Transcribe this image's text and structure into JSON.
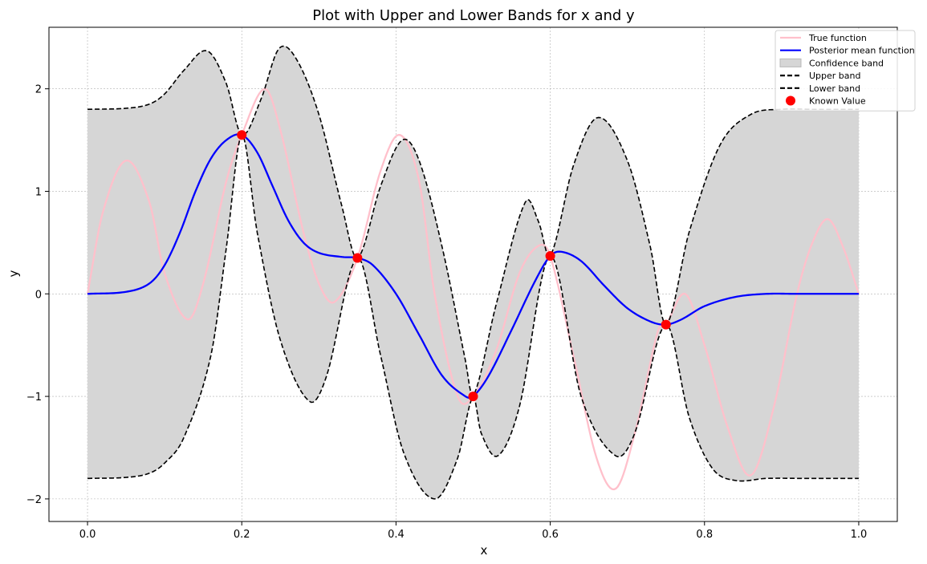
{
  "chart_data": {
    "type": "line",
    "title": "Plot with Upper and Lower Bands for x and y",
    "xlabel": "x",
    "ylabel": "y",
    "xlim": [
      -0.05,
      1.05
    ],
    "ylim": [
      -2.22,
      2.6
    ],
    "x_ticks": [
      0.0,
      0.2,
      0.4,
      0.6,
      0.8,
      1.0
    ],
    "x_tick_labels": [
      "0.0",
      "0.2",
      "0.4",
      "0.6",
      "0.8",
      "1.0"
    ],
    "y_ticks": [
      -2,
      -1,
      0,
      1,
      2
    ],
    "y_tick_labels": [
      "−2",
      "−1",
      "0",
      "1",
      "2"
    ],
    "grid": true,
    "legend_position": "top-right",
    "series": [
      {
        "name": "True function",
        "style": "solid",
        "color": "#ffc0cb",
        "x": [
          0.0,
          0.02,
          0.05,
          0.08,
          0.1,
          0.13,
          0.15,
          0.18,
          0.2,
          0.23,
          0.25,
          0.28,
          0.3,
          0.32,
          0.35,
          0.38,
          0.405,
          0.43,
          0.45,
          0.48,
          0.5,
          0.53,
          0.56,
          0.585,
          0.6,
          0.63,
          0.66,
          0.685,
          0.71,
          0.74,
          0.75,
          0.775,
          0.8,
          0.83,
          0.86,
          0.89,
          0.92,
          0.94,
          0.96,
          0.98,
          1.0
        ],
        "y": [
          0.0,
          0.8,
          1.3,
          0.9,
          0.2,
          -0.25,
          0.1,
          1.1,
          1.55,
          2.0,
          1.6,
          0.6,
          0.1,
          -0.08,
          0.35,
          1.2,
          1.55,
          1.1,
          0.0,
          -1.0,
          -1.0,
          -0.55,
          0.2,
          0.47,
          0.37,
          -0.6,
          -1.6,
          -1.9,
          -1.35,
          -0.35,
          -0.3,
          0.0,
          -0.5,
          -1.3,
          -1.77,
          -1.1,
          0.0,
          0.5,
          0.73,
          0.45,
          0.0
        ]
      },
      {
        "name": "Posterior mean function",
        "style": "solid",
        "color": "#0000ff",
        "x": [
          0.0,
          0.05,
          0.08,
          0.1,
          0.12,
          0.14,
          0.16,
          0.18,
          0.2,
          0.22,
          0.24,
          0.26,
          0.28,
          0.3,
          0.33,
          0.35,
          0.37,
          0.4,
          0.43,
          0.46,
          0.49,
          0.5,
          0.52,
          0.55,
          0.58,
          0.6,
          0.615,
          0.64,
          0.67,
          0.7,
          0.73,
          0.75,
          0.77,
          0.8,
          0.84,
          0.88,
          0.92,
          1.0
        ],
        "y": [
          0.0,
          0.02,
          0.1,
          0.28,
          0.6,
          1.0,
          1.32,
          1.5,
          1.55,
          1.38,
          1.05,
          0.72,
          0.5,
          0.4,
          0.36,
          0.35,
          0.28,
          0.0,
          -0.4,
          -0.8,
          -1.0,
          -1.0,
          -0.8,
          -0.35,
          0.12,
          0.37,
          0.41,
          0.32,
          0.08,
          -0.14,
          -0.27,
          -0.3,
          -0.25,
          -0.12,
          -0.03,
          0.0,
          0.0,
          0.0
        ]
      },
      {
        "name": "Upper band",
        "style": "dashed",
        "color": "#000000",
        "x": [
          0.0,
          0.05,
          0.08,
          0.1,
          0.125,
          0.155,
          0.18,
          0.2,
          0.225,
          0.248,
          0.27,
          0.3,
          0.33,
          0.35,
          0.38,
          0.408,
          0.43,
          0.46,
          0.49,
          0.5,
          0.53,
          0.568,
          0.585,
          0.6,
          0.63,
          0.662,
          0.7,
          0.73,
          0.75,
          0.78,
          0.82,
          0.86,
          0.9,
          0.94,
          1.0
        ],
        "y": [
          1.8,
          1.81,
          1.85,
          1.95,
          2.18,
          2.37,
          2.05,
          1.55,
          1.9,
          2.39,
          2.3,
          1.75,
          0.85,
          0.35,
          1.05,
          1.5,
          1.3,
          0.45,
          -0.65,
          -1.0,
          -0.1,
          0.9,
          0.7,
          0.37,
          1.25,
          1.72,
          1.3,
          0.45,
          -0.3,
          0.6,
          1.45,
          1.75,
          1.8,
          1.8,
          1.8
        ]
      },
      {
        "name": "Lower band",
        "style": "dashed",
        "color": "#000000",
        "x": [
          0.0,
          0.05,
          0.08,
          0.1,
          0.125,
          0.16,
          0.18,
          0.2,
          0.22,
          0.25,
          0.288,
          0.31,
          0.35,
          0.38,
          0.41,
          0.45,
          0.48,
          0.5,
          0.51,
          0.532,
          0.56,
          0.6,
          0.64,
          0.685,
          0.71,
          0.75,
          0.78,
          0.81,
          0.84,
          0.88,
          0.93,
          1.0
        ],
        "y": [
          -1.8,
          -1.79,
          -1.75,
          -1.65,
          -1.4,
          -0.6,
          0.45,
          1.55,
          0.6,
          -0.45,
          -1.05,
          -0.8,
          0.35,
          -0.6,
          -1.55,
          -2.0,
          -1.6,
          -1.0,
          -1.35,
          -1.58,
          -1.1,
          0.37,
          -1.0,
          -1.58,
          -1.35,
          -0.3,
          -1.2,
          -1.7,
          -1.82,
          -1.8,
          -1.8,
          -1.8
        ]
      }
    ],
    "band": {
      "name": "Confidence band",
      "color": "#d6d6d6"
    },
    "points": {
      "name": "Known Value",
      "color": "#ff0000",
      "x": [
        0.2,
        0.35,
        0.5,
        0.6,
        0.75
      ],
      "y": [
        1.55,
        0.35,
        -1.0,
        0.37,
        -0.3
      ]
    },
    "legend": [
      "True function",
      "Posterior mean function",
      "Confidence band",
      "Upper band",
      "Lower band",
      "Known Value"
    ]
  }
}
